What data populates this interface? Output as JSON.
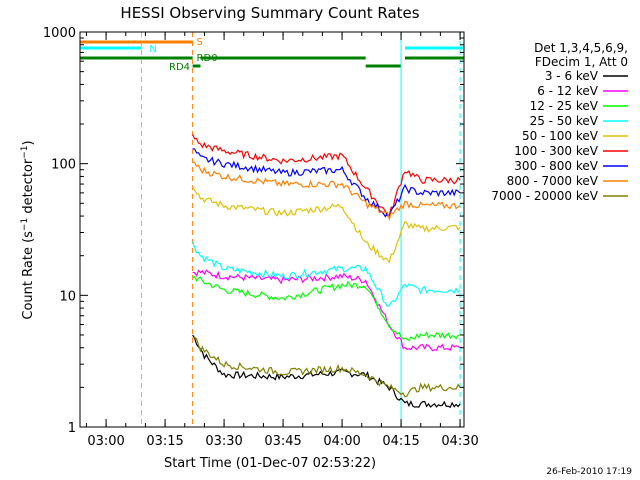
{
  "chart_data": {
    "type": "line",
    "title": "HESSI Observing Summary Count Rates",
    "xlabel": "Start Time (01-Dec-07 02:53:22)",
    "ylabel": "Count Rate (s⁻¹ detector⁻¹)",
    "ylabel_parts": {
      "a": "Count Rate (s",
      "sup1": "−1",
      "b": " detector",
      "sup2": "−1",
      "c": ")"
    },
    "y_scale": "log",
    "ylim": [
      1,
      1000
    ],
    "xlim": [
      "02:53:22",
      "04:31:00"
    ],
    "x_ticks": [
      "03:00",
      "03:15",
      "03:30",
      "03:45",
      "04:00",
      "04:15",
      "04:30"
    ],
    "y_ticks": [
      "1",
      "10",
      "100",
      "1000"
    ],
    "legend_header": [
      "Det 1,3,4,5,6,9,",
      "FDecim 1, Att 0"
    ],
    "legend_position": "right",
    "timestamp": "26-Feb-2010 17:19",
    "state_bars": [
      {
        "label": "S",
        "color": "#ff8000",
        "segments": [
          [
            "02:53:22",
            "03:22:00"
          ]
        ]
      },
      {
        "label": "N",
        "color": "#00ffff",
        "segments": [
          [
            "02:53:22",
            "03:09:00"
          ],
          [
            "04:16:00",
            "04:31:00"
          ]
        ]
      },
      {
        "label": "RD0",
        "color": "#008000",
        "segments": [
          [
            "02:53:22",
            "03:22:00"
          ],
          [
            "03:24:00",
            "04:06:00"
          ],
          [
            "04:16:00",
            "04:31:00"
          ]
        ]
      },
      {
        "label": "RD4",
        "color": "#008000",
        "segments": [
          [
            "03:22:00",
            "03:24:00"
          ],
          [
            "04:06:00",
            "04:15:00"
          ]
        ]
      }
    ],
    "vertical_lines": [
      {
        "time": "02:53:22",
        "color": "#00ffff",
        "style": "solid"
      },
      {
        "time": "03:09:00",
        "color": "#00ffff",
        "style": "dashed"
      },
      {
        "time": "03:22:00",
        "color": "#ff8000",
        "style": "dashed"
      },
      {
        "time": "04:15:00",
        "color": "#00ffff",
        "style": "solid"
      },
      {
        "time": "04:30:00",
        "color": "#00ffff",
        "style": "dashed"
      }
    ],
    "series": [
      {
        "name": "3 - 6 keV",
        "color": "#000000",
        "times": [
          "03:22",
          "03:25",
          "03:30",
          "03:45",
          "04:00",
          "04:06",
          "04:12",
          "04:16",
          "04:20",
          "04:30"
        ],
        "values": [
          5,
          3.5,
          2.5,
          2.4,
          2.6,
          2.5,
          2.0,
          1.5,
          1.5,
          1.5
        ]
      },
      {
        "name": "6 - 12 keV",
        "color": "#ff00ff",
        "times": [
          "03:22",
          "03:24",
          "03:30",
          "03:45",
          "04:00",
          "04:06",
          "04:12",
          "04:16",
          "04:20",
          "04:30"
        ],
        "values": [
          15,
          15,
          14,
          13,
          14,
          13,
          6,
          4,
          4,
          4
        ]
      },
      {
        "name": "12 - 25 keV",
        "color": "#00ff00",
        "times": [
          "03:22",
          "03:24",
          "03:30",
          "03:45",
          "04:00",
          "04:06",
          "04:12",
          "04:16",
          "04:20",
          "04:30"
        ],
        "values": [
          14,
          13,
          11,
          9.5,
          12,
          12,
          6,
          4.5,
          5,
          5
        ]
      },
      {
        "name": "25 - 50 keV",
        "color": "#00ffff",
        "times": [
          "03:22",
          "03:24",
          "03:30",
          "03:45",
          "04:00",
          "04:06",
          "04:12",
          "04:16",
          "04:20",
          "04:30"
        ],
        "values": [
          25,
          20,
          16,
          14,
          16,
          16,
          8,
          12,
          11,
          11
        ]
      },
      {
        "name": "50 - 100 keV",
        "color": "#e0c000",
        "times": [
          "03:22",
          "03:24",
          "03:30",
          "03:45",
          "04:00",
          "04:06",
          "04:12",
          "04:16",
          "04:20",
          "04:30"
        ],
        "values": [
          70,
          55,
          48,
          42,
          48,
          25,
          18,
          35,
          32,
          33
        ]
      },
      {
        "name": "100 - 300 keV",
        "color": "#ff0000",
        "times": [
          "03:22",
          "03:24",
          "03:30",
          "03:45",
          "04:00",
          "04:06",
          "04:12",
          "04:16",
          "04:20",
          "04:30"
        ],
        "values": [
          160,
          140,
          125,
          105,
          115,
          65,
          40,
          90,
          75,
          75
        ]
      },
      {
        "name": "300 - 800 keV",
        "color": "#0000ff",
        "times": [
          "03:22",
          "03:24",
          "03:30",
          "03:45",
          "04:00",
          "04:06",
          "04:12",
          "04:16",
          "04:20",
          "04:30"
        ],
        "values": [
          130,
          110,
          100,
          85,
          90,
          55,
          40,
          65,
          60,
          60
        ]
      },
      {
        "name": "800 - 7000 keV",
        "color": "#ff8000",
        "times": [
          "03:22",
          "03:24",
          "03:30",
          "03:45",
          "04:00",
          "04:06",
          "04:12",
          "04:16",
          "04:20",
          "04:30"
        ],
        "values": [
          105,
          90,
          80,
          70,
          70,
          50,
          40,
          50,
          48,
          48
        ]
      },
      {
        "name": "7000 - 20000 keV",
        "color": "#808000",
        "times": [
          "03:22",
          "03:24",
          "03:30",
          "03:45",
          "04:00",
          "04:06",
          "04:12",
          "04:16",
          "04:20",
          "04:30"
        ],
        "values": [
          5,
          4,
          3,
          2.6,
          2.8,
          2.5,
          2.0,
          1.8,
          2.0,
          2.0
        ]
      }
    ]
  }
}
